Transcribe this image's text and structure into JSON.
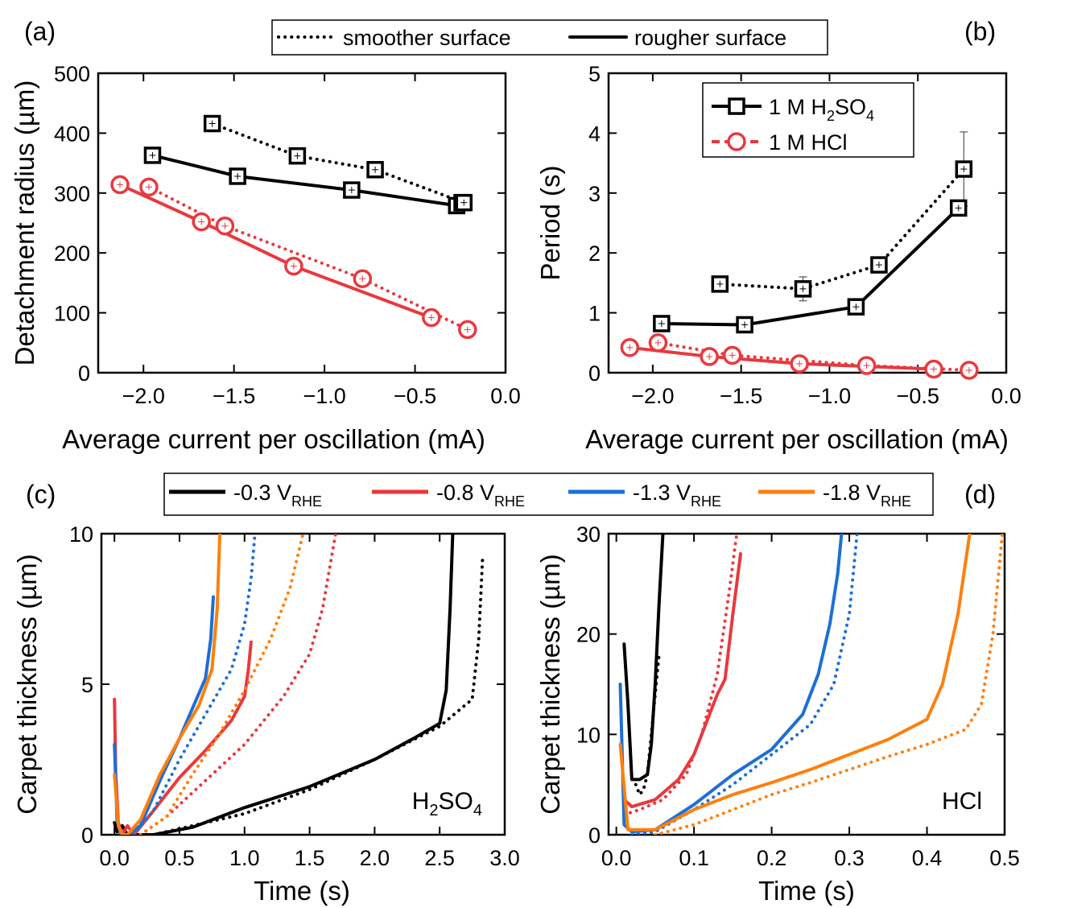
{
  "top_legend": [
    {
      "label": "smoother surface",
      "style": "dotted"
    },
    {
      "label": "rougher surface",
      "style": "solid"
    }
  ],
  "bottom_legend": [
    {
      "main": "-0.3 V",
      "sub": "RHE",
      "color": "#000000"
    },
    {
      "main": "-0.8 V",
      "sub": "RHE",
      "color": "#e8393e"
    },
    {
      "main": "-1.3 V",
      "sub": "RHE",
      "color": "#1c6fd6"
    },
    {
      "main": "-1.8 V",
      "sub": "RHE",
      "color": "#ff7f0e"
    }
  ],
  "chart_data": [
    {
      "panel": "(a)",
      "type": "line",
      "xlabel": "Average current per oscillation (mA)",
      "ylabel": "Detachment radius (µm)",
      "xlim": [
        -2.25,
        0.0
      ],
      "ylim": [
        0,
        500
      ],
      "xticks": [
        "−2.0",
        "−1.5",
        "−1.0",
        "−0.5",
        "0.0"
      ],
      "yticks": [
        "0",
        "100",
        "200",
        "300",
        "400",
        "500"
      ],
      "series": [
        {
          "electrolyte": "H2SO4",
          "surface": "rougher",
          "color": "#000000",
          "marker": "square",
          "x": [
            -1.95,
            -1.48,
            -0.85,
            -0.27,
            -0.24
          ],
          "y": [
            363,
            328,
            305,
            279,
            284
          ]
        },
        {
          "electrolyte": "H2SO4",
          "surface": "smoother",
          "color": "#000000",
          "marker": "square",
          "x": [
            -1.62,
            -1.15,
            -0.72,
            -0.23
          ],
          "y": [
            416,
            362,
            339,
            284
          ]
        },
        {
          "electrolyte": "HCl",
          "surface": "rougher",
          "color": "#e8393e",
          "marker": "circle",
          "x": [
            -2.13,
            -1.68,
            -1.17,
            -0.41
          ],
          "y": [
            314,
            252,
            178,
            92
          ]
        },
        {
          "electrolyte": "HCl",
          "surface": "smoother",
          "color": "#e8393e",
          "marker": "circle",
          "x": [
            -1.97,
            -1.55,
            -0.79,
            -0.21
          ],
          "y": [
            310,
            245,
            157,
            72
          ]
        }
      ]
    },
    {
      "panel": "(b)",
      "type": "line",
      "xlabel": "Average current per oscillation (mA)",
      "ylabel": "Period (s)",
      "xlim": [
        -2.25,
        0.0
      ],
      "ylim": [
        0,
        5
      ],
      "xticks": [
        "−2.0",
        "−1.5",
        "−1.0",
        "−0.5",
        "0.0"
      ],
      "yticks": [
        "0",
        "1",
        "2",
        "3",
        "4",
        "5"
      ],
      "legend": [
        {
          "pre": "1 M H",
          "sub1": "2",
          "mid": "SO",
          "sub2": "4",
          "color": "#000000",
          "marker": "square"
        },
        {
          "pre": "1 M HCl",
          "color": "#e8393e",
          "marker": "circle"
        }
      ],
      "series": [
        {
          "electrolyte": "H2SO4",
          "surface": "rougher",
          "color": "#000000",
          "marker": "square",
          "x": [
            -1.95,
            -1.48,
            -0.85,
            -0.27
          ],
          "y": [
            0.82,
            0.8,
            1.1,
            2.75
          ]
        },
        {
          "electrolyte": "H2SO4",
          "surface": "smoother",
          "color": "#000000",
          "marker": "square",
          "x": [
            -1.62,
            -1.15,
            -0.72,
            -0.24
          ],
          "y": [
            1.48,
            1.4,
            1.8,
            3.4
          ],
          "err": [
            0.05,
            0.2,
            0.05,
            0.62
          ]
        },
        {
          "electrolyte": "HCl",
          "surface": "rougher",
          "color": "#e8393e",
          "marker": "circle",
          "x": [
            -2.13,
            -1.68,
            -1.17,
            -0.41
          ],
          "y": [
            0.42,
            0.27,
            0.15,
            0.06
          ]
        },
        {
          "electrolyte": "HCl",
          "surface": "smoother",
          "color": "#e8393e",
          "marker": "circle",
          "x": [
            -1.97,
            -1.55,
            -0.79,
            -0.21
          ],
          "y": [
            0.5,
            0.29,
            0.12,
            0.04
          ]
        }
      ]
    },
    {
      "panel": "(c)",
      "type": "line",
      "xlabel": "Time (s)",
      "ylabel": "Carpet thickness (µm)",
      "annotation": {
        "pre": "H",
        "sub1": "2",
        "mid": "SO",
        "sub2": "4"
      },
      "xlim": [
        -0.1,
        3.0
      ],
      "ylim": [
        0,
        10
      ],
      "xticks": [
        "0.0",
        "0.5",
        "1.0",
        "1.5",
        "2.0",
        "2.5",
        "3.0"
      ],
      "yticks": [
        "0",
        "5",
        "10"
      ],
      "series": [
        {
          "potential": "-0.3 V_RHE",
          "surface": "rougher",
          "color": "#000000",
          "x": [
            0.0,
            0.02,
            0.06,
            0.1,
            0.15,
            0.3,
            0.6,
            1.0,
            1.5,
            2.0,
            2.3,
            2.5,
            2.55,
            2.58,
            2.6
          ],
          "y": [
            0.4,
            0.1,
            0.3,
            0.0,
            0.0,
            0.0,
            0.25,
            0.9,
            1.6,
            2.5,
            3.2,
            3.7,
            4.8,
            7.5,
            10
          ]
        },
        {
          "potential": "-0.3 V_RHE",
          "surface": "smoother",
          "color": "#000000",
          "x": [
            0.3,
            0.6,
            1.0,
            1.5,
            2.0,
            2.5,
            2.75,
            2.8,
            2.83
          ],
          "y": [
            0.0,
            0.3,
            0.7,
            1.5,
            2.5,
            3.6,
            4.5,
            6.5,
            9.2
          ]
        },
        {
          "potential": "-0.8 V_RHE",
          "surface": "rougher",
          "color": "#e8393e",
          "x": [
            0.0,
            0.01,
            0.03,
            0.06,
            0.1,
            0.15,
            0.3,
            0.5,
            0.7,
            0.9,
            1.0,
            1.03,
            1.05
          ],
          "y": [
            4.5,
            2.0,
            0.4,
            0.0,
            0.3,
            0.0,
            0.8,
            1.9,
            2.8,
            3.8,
            4.6,
            5.5,
            6.4
          ]
        },
        {
          "potential": "-0.8 V_RHE",
          "surface": "smoother",
          "color": "#e8393e",
          "x": [
            0.2,
            0.4,
            0.7,
            1.0,
            1.3,
            1.5,
            1.6,
            1.66,
            1.7
          ],
          "y": [
            0.0,
            0.6,
            1.8,
            3.0,
            4.6,
            6.0,
            7.5,
            9.0,
            10
          ]
        },
        {
          "potential": "-1.3 V_RHE",
          "surface": "rougher",
          "color": "#1c6fd6",
          "x": [
            0.0,
            0.02,
            0.05,
            0.1,
            0.2,
            0.35,
            0.5,
            0.6,
            0.7,
            0.74,
            0.76
          ],
          "y": [
            3.0,
            0.5,
            0.0,
            0.0,
            0.3,
            1.8,
            3.2,
            4.2,
            5.2,
            6.5,
            7.9
          ]
        },
        {
          "potential": "-1.3 V_RHE",
          "surface": "smoother",
          "color": "#1c6fd6",
          "x": [
            0.15,
            0.3,
            0.5,
            0.7,
            0.9,
            1.0,
            1.05,
            1.08
          ],
          "y": [
            0.0,
            0.8,
            2.5,
            4.0,
            5.5,
            7.0,
            8.5,
            10
          ]
        },
        {
          "potential": "-1.8 V_RHE",
          "surface": "rougher",
          "color": "#ff7f0e",
          "x": [
            0.0,
            0.03,
            0.06,
            0.1,
            0.2,
            0.35,
            0.5,
            0.65,
            0.75,
            0.79,
            0.81
          ],
          "y": [
            2.0,
            0.3,
            0.0,
            0.0,
            0.5,
            2.0,
            3.2,
            4.3,
            5.5,
            7.5,
            10
          ]
        },
        {
          "potential": "-1.8 V_RHE",
          "surface": "smoother",
          "color": "#ff7f0e",
          "x": [
            0.2,
            0.4,
            0.6,
            0.8,
            1.0,
            1.2,
            1.35,
            1.45
          ],
          "y": [
            0.0,
            0.6,
            2.0,
            3.3,
            4.8,
            6.5,
            8.2,
            10
          ]
        }
      ]
    },
    {
      "panel": "(d)",
      "type": "line",
      "xlabel": "Time (s)",
      "ylabel": "Carpet thickness (µm)",
      "annotation": {
        "pre": "HCl"
      },
      "xlim": [
        -0.01,
        0.5
      ],
      "ylim": [
        0,
        30
      ],
      "xticks": [
        "0.0",
        "0.1",
        "0.2",
        "0.3",
        "0.4",
        "0.5"
      ],
      "yticks": [
        "0",
        "10",
        "20",
        "30"
      ],
      "series": [
        {
          "potential": "-0.3 V_RHE",
          "surface": "rougher",
          "color": "#000000",
          "x": [
            0.01,
            0.015,
            0.02,
            0.03,
            0.04,
            0.045,
            0.05,
            0.055,
            0.06
          ],
          "y": [
            19,
            13,
            5.5,
            5.5,
            6.0,
            9.0,
            15,
            23,
            30
          ]
        },
        {
          "potential": "-0.3 V_RHE",
          "surface": "smoother",
          "color": "#000000",
          "x": [
            0.025,
            0.03,
            0.035,
            0.04,
            0.045,
            0.05,
            0.055
          ],
          "y": [
            5.0,
            4.0,
            4.5,
            6.0,
            10,
            14,
            18
          ]
        },
        {
          "potential": "-0.8 V_RHE",
          "surface": "rougher",
          "color": "#e8393e",
          "x": [
            0.01,
            0.02,
            0.05,
            0.08,
            0.1,
            0.12,
            0.13,
            0.14,
            0.15,
            0.16
          ],
          "y": [
            3.5,
            2.8,
            3.5,
            5.5,
            8.0,
            12,
            14,
            15.5,
            22,
            28
          ]
        },
        {
          "potential": "-0.8 V_RHE",
          "surface": "smoother",
          "color": "#e8393e",
          "x": [
            0.01,
            0.03,
            0.06,
            0.09,
            0.11,
            0.13,
            0.145,
            0.155
          ],
          "y": [
            2.0,
            2.5,
            3.5,
            6.0,
            10,
            16,
            24,
            30
          ]
        },
        {
          "potential": "-1.3 V_RHE",
          "surface": "rougher",
          "color": "#1c6fd6",
          "x": [
            0.005,
            0.01,
            0.02,
            0.05,
            0.1,
            0.15,
            0.2,
            0.24,
            0.26,
            0.275,
            0.285,
            0.29
          ],
          "y": [
            15,
            1.0,
            0.3,
            0.5,
            3.0,
            6.0,
            8.5,
            12,
            16,
            21,
            26,
            30
          ]
        },
        {
          "potential": "-1.3 V_RHE",
          "surface": "smoother",
          "color": "#1c6fd6",
          "x": [
            0.02,
            0.05,
            0.1,
            0.15,
            0.2,
            0.25,
            0.28,
            0.3,
            0.31
          ],
          "y": [
            0.0,
            0.3,
            2.5,
            5.0,
            8.0,
            11,
            15,
            22,
            30
          ]
        },
        {
          "potential": "-1.8 V_RHE",
          "surface": "rougher",
          "color": "#ff7f0e",
          "x": [
            0.005,
            0.015,
            0.05,
            0.1,
            0.15,
            0.2,
            0.25,
            0.3,
            0.35,
            0.4,
            0.42,
            0.44,
            0.455
          ],
          "y": [
            9.0,
            0.5,
            0.5,
            2.5,
            4.0,
            5.2,
            6.5,
            8.0,
            9.5,
            11.5,
            15,
            22,
            30
          ]
        },
        {
          "potential": "-1.8 V_RHE",
          "surface": "smoother",
          "color": "#ff7f0e",
          "x": [
            0.05,
            0.1,
            0.15,
            0.2,
            0.25,
            0.3,
            0.35,
            0.4,
            0.45,
            0.47,
            0.485,
            0.497
          ],
          "y": [
            0.0,
            1.0,
            2.5,
            4.0,
            5.2,
            6.5,
            7.8,
            9.0,
            10.5,
            13,
            20,
            30
          ]
        }
      ]
    }
  ]
}
